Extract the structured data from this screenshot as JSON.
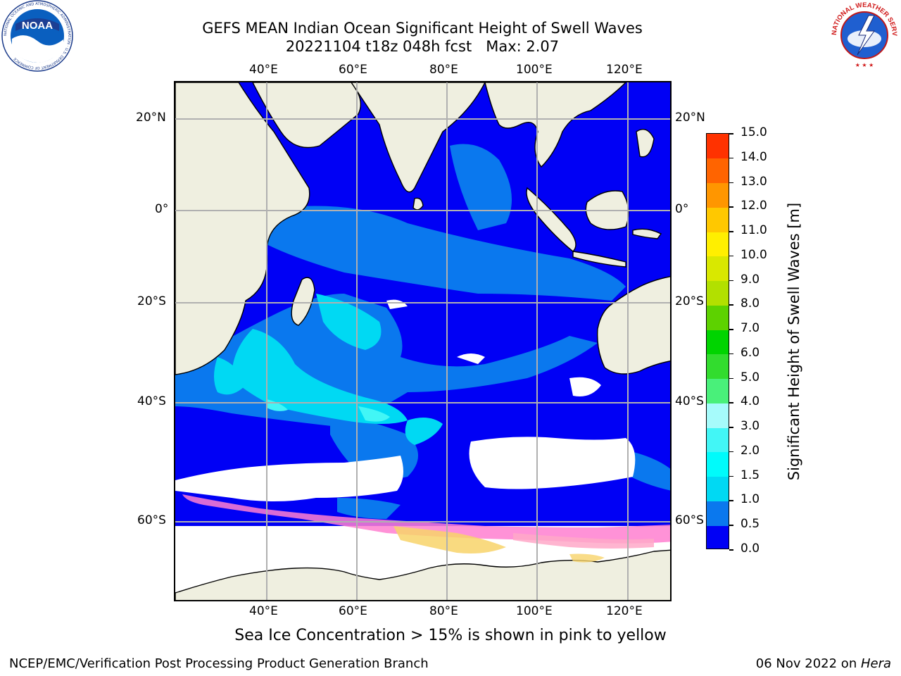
{
  "title_line1": "GEFS MEAN Indian Ocean Significant Height of Swell Waves",
  "title_line2": "20221104 t18z 048h fcst   Max: 2.07",
  "logos": {
    "noaa": {
      "text": "NOAA",
      "ring": "NATIONAL OCEANIC AND ATMOSPHERIC ADMINISTRATION · U.S. DEPARTMENT OF COMMERCE"
    },
    "nws": {
      "ring": "NATIONAL WEATHER SERVICE"
    }
  },
  "map": {
    "lon_labels": [
      "40°E",
      "60°E",
      "80°E",
      "100°E",
      "120°E"
    ],
    "lat_labels": [
      "20°N",
      "0°",
      "20°S",
      "40°S",
      "60°S"
    ],
    "colors": {
      "ocean_low": "#0000f5",
      "ocean_mid": "#0a78ee",
      "ocean_high": "#00f0f0",
      "land": "#efefe0",
      "sea_ice": "#ff7fd0"
    }
  },
  "colorbar": {
    "label": "Significant Height of Swell Waves [m]",
    "ticks": [
      "0.0",
      "0.5",
      "1.0",
      "1.5",
      "2.0",
      "3.0",
      "4.0",
      "5.0",
      "6.0",
      "7.0",
      "8.0",
      "9.0",
      "10.0",
      "11.0",
      "12.0",
      "13.0",
      "14.0",
      "15.0"
    ],
    "colors": [
      "#0000f5",
      "#0a78ee",
      "#00d9f3",
      "#00fbfb",
      "#42f6f6",
      "#a6fbfb",
      "#49f07a",
      "#32dc2e",
      "#00d400",
      "#5dd200",
      "#b2e000",
      "#d9e800",
      "#ffef00",
      "#ffc800",
      "#ff9600",
      "#ff6400",
      "#ff3200",
      "#ff0000"
    ]
  },
  "footnote": "Sea Ice Concentration > 15% is shown in pink to yellow",
  "footer_left": "NCEP/EMC/Verification Post Processing Product Generation Branch",
  "footer_right_date": "06 Nov 2022 on ",
  "footer_right_host": "Hera"
}
